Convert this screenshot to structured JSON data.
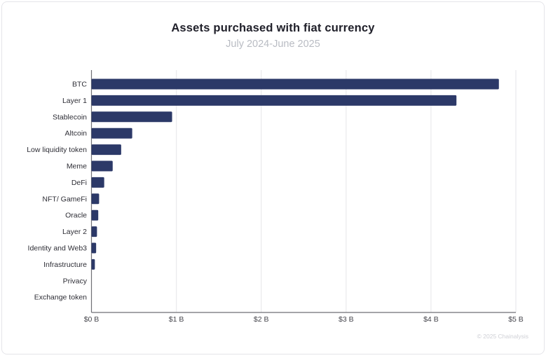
{
  "header": {
    "title": "Assets purchased with fiat currency",
    "subtitle": "July 2024-June 2025"
  },
  "footer": {
    "attribution": "© 2025 Chainalysis"
  },
  "colors": {
    "bar": "#2c3968",
    "gridline": "#ebebee",
    "axis": "#6f6f75",
    "category_label": "#2d2d35",
    "tick_label": "#45454c",
    "title": "#20202a",
    "subtitle": "#b9bcc3"
  },
  "chart_data": {
    "type": "bar",
    "orientation": "horizontal",
    "title": "Assets purchased with fiat currency",
    "subtitle": "July 2024-June 2025",
    "unit": "USD billions",
    "categories": [
      "BTC",
      "Layer 1",
      "Stablecoin",
      "Altcoin",
      "Low liquidity token",
      "Meme",
      "DeFi",
      "NFT/ GameFi",
      "Oracle",
      "Layer 2",
      "Identity and Web3",
      "Infrastructure",
      "Privacy",
      "Exchange token"
    ],
    "values": [
      4.8,
      4.3,
      0.95,
      0.48,
      0.35,
      0.25,
      0.15,
      0.09,
      0.08,
      0.065,
      0.055,
      0.04,
      0,
      0
    ],
    "xlim": [
      0,
      5
    ],
    "x_tick_labels": [
      "$0 B",
      "$1 B",
      "$2 B",
      "$3 B",
      "$4 B",
      "$5 B"
    ],
    "grid": true,
    "legend": false
  }
}
